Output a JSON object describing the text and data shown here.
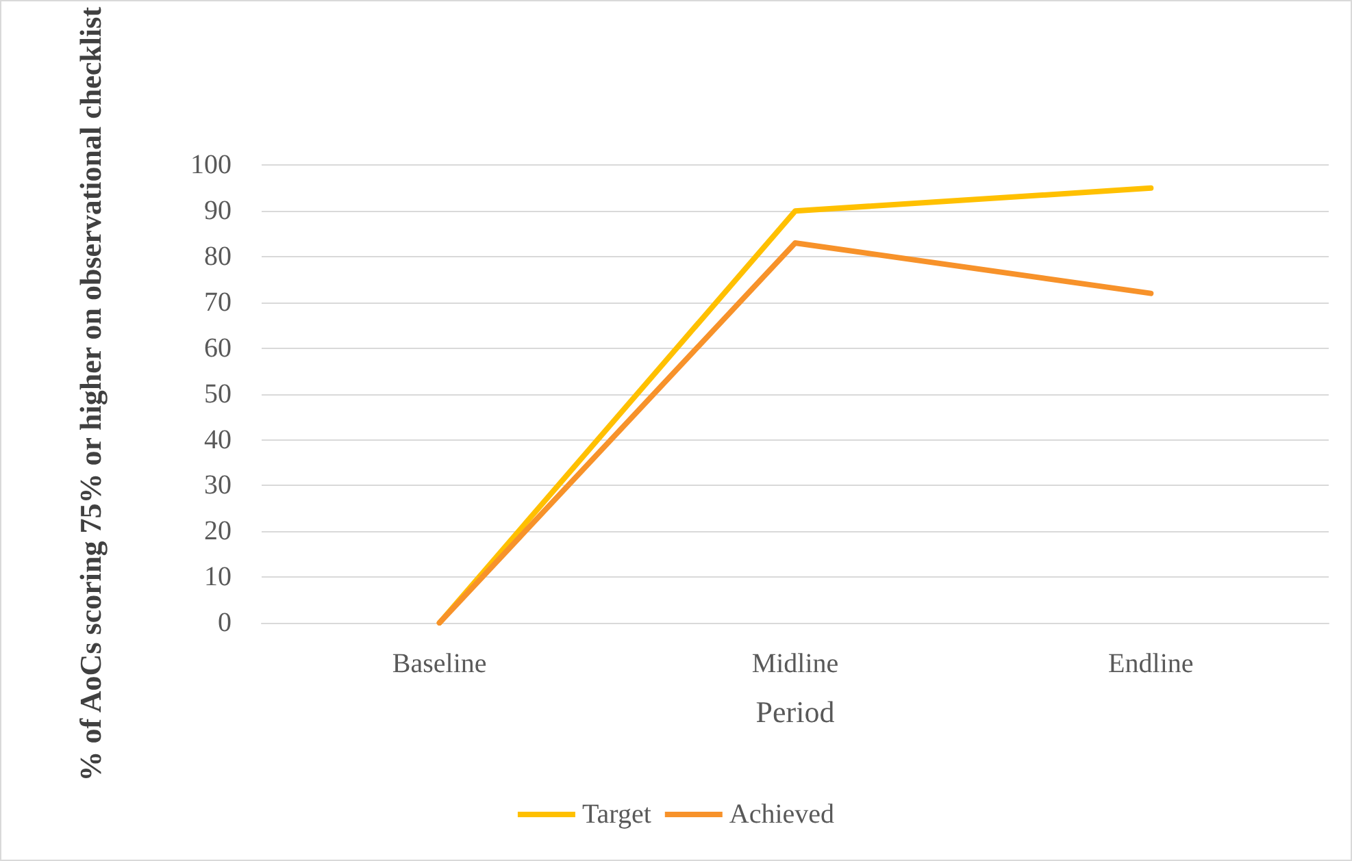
{
  "chart_data": {
    "type": "line",
    "xlabel": "Period",
    "ylabel": "% of AoCs scoring 75% or higher on observational checklist",
    "categories": [
      "Baseline",
      "Midline",
      "Endline"
    ],
    "series": [
      {
        "name": "Target",
        "color": "#ffc000",
        "values": [
          0,
          90,
          95
        ]
      },
      {
        "name": "Achieved",
        "color": "#f7922a",
        "values": [
          0,
          83,
          72
        ]
      }
    ],
    "ylim": [
      0,
      100
    ],
    "yticks": [
      0,
      10,
      20,
      30,
      40,
      50,
      60,
      70,
      80,
      90,
      100
    ],
    "grid": "y",
    "legend": "bottom",
    "marker": "none",
    "line_style": "solid"
  }
}
